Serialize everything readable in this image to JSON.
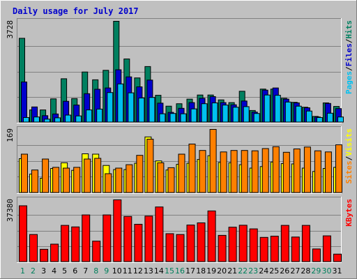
{
  "chart_data": {
    "type": "bar",
    "title": "Daily usage for July 2017",
    "categories": [
      "1",
      "2",
      "3",
      "4",
      "5",
      "6",
      "7",
      "8",
      "9",
      "10",
      "11",
      "12",
      "13",
      "14",
      "15",
      "16",
      "17",
      "18",
      "19",
      "20",
      "21",
      "22",
      "23",
      "24",
      "25",
      "26",
      "27",
      "28",
      "29",
      "30",
      "31"
    ],
    "weekend_days": [
      "1",
      "2",
      "8",
      "9",
      "15",
      "16",
      "22",
      "23",
      "29",
      "30"
    ],
    "panels": [
      {
        "id": "hits-panel",
        "ymax_label": "3728",
        "ylim": [
          0,
          3728
        ],
        "grid": true,
        "legend": [
          {
            "text": "Pages",
            "color": "#00c0f0"
          },
          {
            "text": "/",
            "color": "#000000"
          },
          {
            "text": "Files",
            "color": "#0000cc"
          },
          {
            "text": "/",
            "color": "#000000"
          },
          {
            "text": "Hits",
            "color": "#008060"
          }
        ],
        "series": [
          {
            "name": "Hits",
            "color": "#008060",
            "values": [
              3100,
              460,
              460,
              870,
              1610,
              880,
              1860,
              1570,
              1920,
              3728,
              2340,
              1640,
              2060,
              1000,
              600,
              690,
              860,
              1010,
              1010,
              830,
              730,
              1150,
              440,
              1230,
              1230,
              890,
              740,
              560,
              220,
              720,
              590
            ]
          },
          {
            "name": "Files",
            "color": "#0000cc",
            "values": [
              1490,
              570,
              250,
              310,
              780,
              640,
              1060,
              1220,
              1270,
              1940,
              1680,
              1310,
              1560,
              710,
              370,
              520,
              730,
              890,
              950,
              730,
              650,
              790,
              380,
              1190,
              1270,
              860,
              720,
              540,
              200,
              700,
              510
            ]
          },
          {
            "name": "Pages",
            "color": "#00c0f0",
            "values": [
              180,
              200,
              120,
              170,
              270,
              240,
              460,
              490,
              1100,
              1420,
              1090,
              900,
              920,
              320,
              330,
              320,
              500,
              690,
              720,
              640,
              560,
              580,
              330,
              1010,
              1000,
              750,
              600,
              420,
              180,
              340,
              200
            ]
          }
        ]
      },
      {
        "id": "visits-panel",
        "ymax_label": "169",
        "ylim": [
          0,
          169
        ],
        "grid": true,
        "legend": [
          {
            "text": "Sites",
            "color": "#ff8000"
          },
          {
            "text": "/",
            "color": "#000000"
          },
          {
            "text": "Visits",
            "color": "#ffff00"
          }
        ],
        "series": [
          {
            "name": "Visits",
            "color": "#ffff00",
            "values": [
              91,
              50,
              39,
              65,
              80,
              60,
              104,
              103,
              73,
              62,
              62,
              79,
              149,
              85,
              61,
              76,
              79,
              89,
              99,
              81,
              80,
              75,
              66,
              70,
              82,
              78,
              77,
              66,
              57,
              65,
              68
            ]
          },
          {
            "name": "Sites",
            "color": "#ff8000",
            "values": [
              103,
              61,
              90,
              68,
              66,
              68,
              90,
              92,
              51,
              66,
              75,
              100,
              143,
              80,
              67,
              103,
              130,
              113,
              169,
              109,
              113,
              113,
              112,
              118,
              123,
              108,
              117,
              122,
              112,
              109,
              128
            ]
          }
        ]
      },
      {
        "id": "kbytes-panel",
        "ymax_label": "37380",
        "ylim": [
          0,
          37380
        ],
        "grid": true,
        "legend": [
          {
            "text": "KBytes",
            "color": "#ff0000"
          }
        ],
        "series": [
          {
            "name": "KBytes",
            "color": "#ff0000",
            "values": [
              33800,
              16500,
              7600,
              10700,
              22000,
              21100,
              28300,
              12500,
              28300,
              37380,
              27400,
              22700,
              27600,
              33100,
              17000,
              16500,
              22200,
              23500,
              30700,
              16000,
              20900,
              22100,
              19900,
              14800,
              15500,
              22000,
              15000,
              22000,
              7800,
              15700,
              4700
            ]
          }
        ]
      }
    ]
  }
}
